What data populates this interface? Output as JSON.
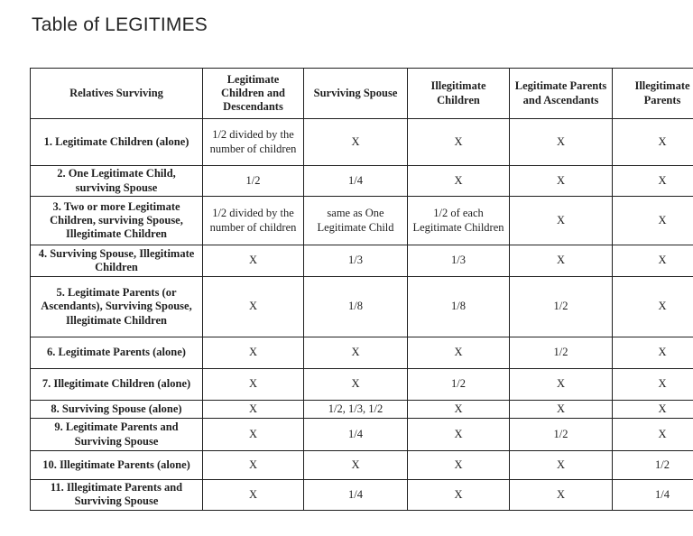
{
  "page": {
    "title": "Table of LEGITIMES"
  },
  "table": {
    "columns": [
      "Relatives Surviving",
      "Legitimate Children and Descendants",
      "Surviving Spouse",
      "Illegitimate Children",
      "Legitimate Parents and Ascendants",
      "Illegitimate Parents"
    ],
    "rows": [
      {
        "label": "1. Legitimate Children (alone)",
        "cells": [
          "1/2 divided by the number of children",
          "X",
          "X",
          "X",
          "X"
        ]
      },
      {
        "label": "2. One Legitimate Child, surviving Spouse",
        "cells": [
          "1/2",
          "1/4",
          "X",
          "X",
          "X"
        ]
      },
      {
        "label": "3. Two or more Legitimate Children, surviving Spouse, Illegitimate Children",
        "cells": [
          "1/2 divided by the number of children",
          "same as One Legitimate Child",
          "1/2 of each Legitimate Children",
          "X",
          "X"
        ]
      },
      {
        "label": "4. Surviving Spouse, Illegitimate Children",
        "cells": [
          "X",
          "1/3",
          "1/3",
          "X",
          "X"
        ]
      },
      {
        "label": "5. Legitimate Parents (or Ascendants), Surviving Spouse, Illegitimate Children",
        "cells": [
          "X",
          "1/8",
          "1/8",
          "1/2",
          "X"
        ]
      },
      {
        "label": "6. Legitimate Parents (alone)",
        "cells": [
          "X",
          "X",
          "X",
          "1/2",
          "X"
        ]
      },
      {
        "label": "7. Illegitimate Children (alone)",
        "cells": [
          "X",
          "X",
          "1/2",
          "X",
          "X"
        ]
      },
      {
        "label": "8. Surviving Spouse (alone)",
        "cells": [
          "X",
          "1/2, 1/3, 1/2",
          "X",
          "X",
          "X"
        ]
      },
      {
        "label": "9. Legitimate Parents and Surviving Spouse",
        "cells": [
          "X",
          "1/4",
          "X",
          "1/2",
          "X"
        ]
      },
      {
        "label": "10. Illegitimate Parents (alone)",
        "cells": [
          "X",
          "X",
          "X",
          "X",
          "1/2"
        ]
      },
      {
        "label": "11. Illegitimate Parents and Surviving Spouse",
        "cells": [
          "X",
          "1/4",
          "X",
          "X",
          "1/4"
        ]
      }
    ]
  }
}
